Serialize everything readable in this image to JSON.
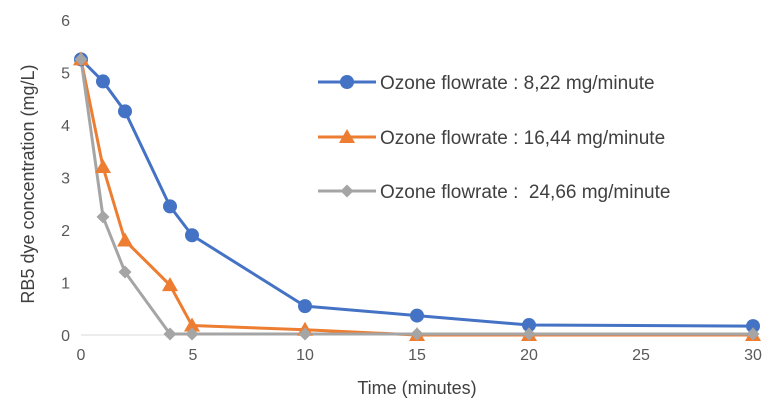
{
  "chart_data": {
    "type": "line",
    "title": "",
    "xlabel": "Time (minutes)",
    "ylabel": "RB5 dye concentration (mg/L)",
    "x": [
      0,
      1,
      2,
      4,
      5,
      10,
      15,
      20,
      30
    ],
    "x_tick_labels": [
      "0",
      "5",
      "10",
      "15",
      "20",
      "25",
      "30"
    ],
    "ylim": [
      0,
      6
    ],
    "y_ticks": [
      0,
      1,
      2,
      3,
      4,
      5,
      6
    ],
    "grid": false,
    "legend_position": "right",
    "series": [
      {
        "name": "Ozone flowrate : 8,22 mg/minute",
        "color": "#4472C4",
        "marker": "circle",
        "values": [
          5.25,
          4.83,
          4.26,
          2.45,
          1.9,
          0.55,
          0.37,
          0.19,
          0.17
        ]
      },
      {
        "name": "Ozone flowrate : 16,44 mg/minute",
        "color": "#ED7D31",
        "marker": "triangle",
        "values": [
          5.25,
          3.2,
          1.8,
          0.95,
          0.18,
          0.1,
          0.0,
          0.0,
          0.0
        ]
      },
      {
        "name": "Ozone flowrate :  24,66 mg/minute",
        "color": "#A5A5A5",
        "marker": "diamond",
        "values": [
          5.25,
          2.25,
          1.2,
          0.02,
          0.02,
          0.02,
          0.02,
          0.02,
          0.02
        ]
      }
    ]
  }
}
